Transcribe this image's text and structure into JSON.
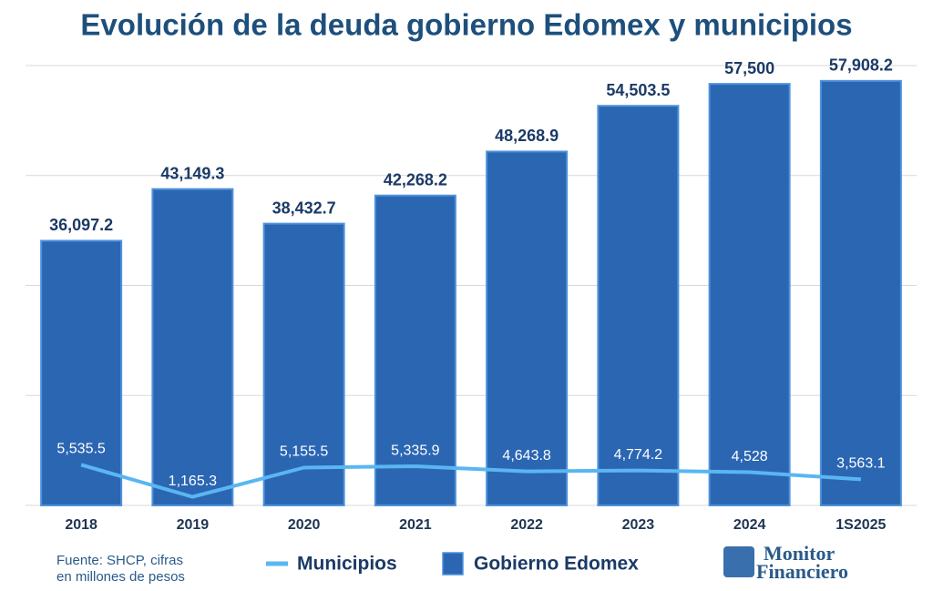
{
  "chart_data": {
    "type": "bar",
    "title": "Evolución de la deuda gobierno Edomex y municipios",
    "categories": [
      "2018",
      "2019",
      "2020",
      "2021",
      "2022",
      "2023",
      "2024",
      "1S2025"
    ],
    "series": [
      {
        "name": "Municipios",
        "type": "line",
        "color": "#5ab6f2",
        "values": [
          5535.5,
          1165.3,
          5155.5,
          5335.9,
          4643.8,
          4774.2,
          4528,
          3563.1
        ],
        "value_labels": [
          "5,535.5",
          "1,165.3",
          "5,155.5",
          "5,335.9",
          "4,643.8",
          "4,774.2",
          "4,528",
          "3,563.1"
        ]
      },
      {
        "name": "Gobierno Edomex",
        "type": "bar",
        "color": "#2b66b3",
        "values": [
          36097.2,
          43149.3,
          38432.7,
          42268.2,
          48268.9,
          54503.5,
          57500,
          57908.2
        ],
        "value_labels": [
          "36,097.2",
          "43,149.3",
          "38,432.7",
          "42,268.2",
          "48,268.9",
          "54,503.5",
          "57,500",
          "57,908.2"
        ]
      }
    ],
    "ylim": [
      0,
      60000
    ],
    "yticks": [
      0,
      15000,
      30000,
      45000,
      60000
    ],
    "grid": true,
    "note": [
      "Fuente: SHCP, cifras",
      "en millones de pesos"
    ],
    "logo": [
      "Monitor",
      "Financiero"
    ]
  }
}
